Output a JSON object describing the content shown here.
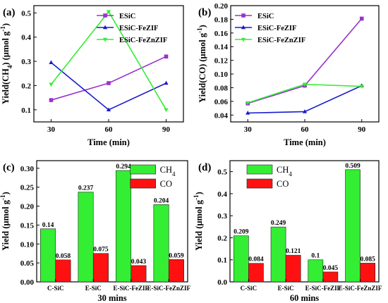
{
  "chart_data": [
    {
      "id": "a",
      "type": "line",
      "panel_label": "(a)",
      "xlabel": "Time (min)",
      "ylabel": "Yield(CH4) (μmol g-1)",
      "x": [
        30,
        60,
        90
      ],
      "xticks": [
        "30",
        "60",
        "90"
      ],
      "xlim": [
        21,
        99
      ],
      "ylim": [
        0.05,
        0.53
      ],
      "yticks": [
        0.1,
        0.2,
        0.3,
        0.4,
        0.5
      ],
      "yticklabels": [
        "0.1",
        "0.2",
        "0.3",
        "0.4",
        "0.5"
      ],
      "legend_position": "top-right",
      "series": [
        {
          "name": "ESiC",
          "values": [
            0.14,
            0.21,
            0.32
          ],
          "color": "#9933cc",
          "marker": "square"
        },
        {
          "name": "ESiC-FeZIF",
          "values": [
            0.295,
            0.1,
            0.21
          ],
          "color": "#1a1acc",
          "marker": "triangle-up"
        },
        {
          "name": "ESiC-FeZnZIF",
          "values": [
            0.205,
            0.505,
            0.1
          ],
          "color": "#33ee33",
          "marker": "triangle-down"
        }
      ]
    },
    {
      "id": "b",
      "type": "line",
      "panel_label": "(b)",
      "xlabel": "Time (min)",
      "ylabel": "Yield(CO) (μmol g-1)",
      "x": [
        30,
        60,
        90
      ],
      "xticks": [
        "30",
        "60",
        "90"
      ],
      "xlim": [
        21,
        99
      ],
      "ylim": [
        0.03,
        0.2
      ],
      "yticks": [
        0.04,
        0.06,
        0.08,
        0.1,
        0.12,
        0.14,
        0.16,
        0.18,
        0.2
      ],
      "yticklabels": [
        "0.04",
        "0.06",
        "0.08",
        "0.10",
        "0.12",
        "0.14",
        "0.16",
        "0.18",
        "0.20"
      ],
      "legend_position": "top-left",
      "series": [
        {
          "name": "ESiC",
          "values": [
            0.057,
            0.083,
            0.181
          ],
          "color": "#9933cc",
          "marker": "square"
        },
        {
          "name": "ESiC-FeZIF",
          "values": [
            0.043,
            0.045,
            0.083
          ],
          "color": "#1a1acc",
          "marker": "triangle-up"
        },
        {
          "name": "ESiC-FeZnZIF",
          "values": [
            0.058,
            0.085,
            0.082
          ],
          "color": "#33ee33",
          "marker": "triangle-down"
        }
      ]
    },
    {
      "id": "c",
      "type": "bar",
      "panel_label": "(c)",
      "xlabel": "30 mins",
      "ylabel": "Yield (μmol g-1)",
      "categories": [
        "C-SiC",
        "E-SiC",
        "E-SiC-FeZIF",
        "E-SiC-FeZnZIF"
      ],
      "ylim": [
        0,
        0.32
      ],
      "yticks": [
        0,
        0.05,
        0.1,
        0.15,
        0.2,
        0.25,
        0.3
      ],
      "yticklabels": [
        "0.00",
        "0.05",
        "0.10",
        "0.15",
        "0.20",
        "0.25",
        "0.30"
      ],
      "legend_position": "top-right",
      "series": [
        {
          "name": "CH4",
          "values": [
            0.14,
            0.237,
            0.294,
            0.204
          ],
          "labels": [
            "0.14",
            "0.237",
            "0.294",
            "0.204"
          ],
          "color": "#33ee33"
        },
        {
          "name": "CO",
          "values": [
            0.058,
            0.075,
            0.043,
            0.059
          ],
          "labels": [
            "0.058",
            "0.075",
            "0.043",
            "0.059"
          ],
          "color": "#ff1111"
        }
      ]
    },
    {
      "id": "d",
      "type": "bar",
      "panel_label": "(d)",
      "xlabel": "60 mins",
      "ylabel": "Yield (μmol g-1)",
      "categories": [
        "C-SiC",
        "E-SiC",
        "E-SiC-FeZIF",
        "E-SiC-FeZnZIF"
      ],
      "ylim": [
        0,
        0.55
      ],
      "yticks": [
        0,
        0.1,
        0.2,
        0.3,
        0.4,
        0.5
      ],
      "yticklabels": [
        "0.0",
        "0.1",
        "0.2",
        "0.3",
        "0.4",
        "0.5"
      ],
      "legend_position": "top-left",
      "series": [
        {
          "name": "CH4",
          "values": [
            0.209,
            0.249,
            0.1,
            0.509
          ],
          "labels": [
            "0.209",
            "0.249",
            "0.1",
            "0.509"
          ],
          "color": "#33ee33"
        },
        {
          "name": "CO",
          "values": [
            0.084,
            0.121,
            0.045,
            0.085
          ],
          "labels": [
            "0.084",
            "0.121",
            "0.045",
            "0.085"
          ],
          "color": "#ff1111"
        }
      ]
    }
  ]
}
